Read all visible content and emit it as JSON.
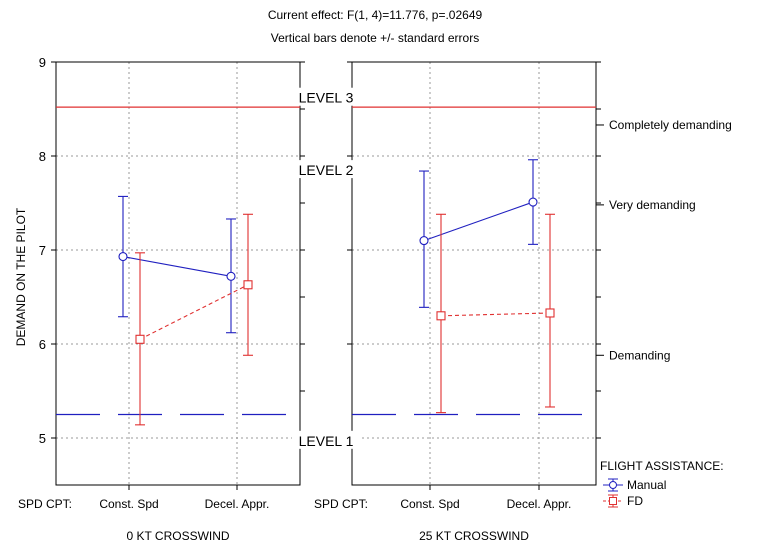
{
  "chart_data": {
    "type": "line",
    "title": "Current effect: F(1, 4)=11.776, p=.02649",
    "subtitle": "Vertical bars denote +/- standard errors",
    "ylabel": "DEMAND ON THE PILOT",
    "ylim": [
      4.5,
      9
    ],
    "yticks": [
      "5",
      "6",
      "7",
      "8",
      "9"
    ],
    "x_axis_prefix": "SPD CPT:",
    "categories": [
      "Const. Spd",
      "Decel. Appr."
    ],
    "panels": [
      {
        "label": "0 KT CROSSWIND",
        "series": [
          {
            "name": "Manual",
            "values": [
              6.93,
              6.72
            ],
            "lower": [
              6.29,
              6.12
            ],
            "upper": [
              7.57,
              7.33
            ]
          },
          {
            "name": "FD",
            "values": [
              6.05,
              6.63
            ],
            "lower": [
              5.14,
              5.88
            ],
            "upper": [
              6.97,
              7.38
            ]
          }
        ]
      },
      {
        "label": "25 KT CROSSWIND",
        "series": [
          {
            "name": "Manual",
            "values": [
              7.1,
              7.51
            ],
            "lower": [
              6.39,
              7.06
            ],
            "upper": [
              7.84,
              7.96
            ]
          },
          {
            "name": "FD",
            "values": [
              6.3,
              6.33
            ],
            "lower": [
              5.27,
              5.33
            ],
            "upper": [
              7.38,
              7.38
            ]
          }
        ]
      }
    ],
    "reference_lines": [
      {
        "label": "LEVEL 3",
        "y": 8.52,
        "color": "#e03030",
        "style": "solid"
      },
      {
        "label": "LEVEL 1",
        "y": 5.25,
        "color": "#2020c0",
        "style": "dashed"
      }
    ],
    "level_labels": [
      {
        "label": "LEVEL 3",
        "y": 8.62
      },
      {
        "label": "LEVEL 2",
        "y": 7.85
      },
      {
        "label": "LEVEL 1",
        "y": 4.97
      }
    ],
    "right_axis": [
      {
        "label": "Completely demanding",
        "y": 8.33
      },
      {
        "label": "Very demanding",
        "y": 7.48
      },
      {
        "label": "Demanding",
        "y": 5.88
      }
    ],
    "legend": {
      "title": "FLIGHT ASSISTANCE:",
      "position": "bottom-right",
      "entries": [
        {
          "name": "Manual",
          "color": "#2020c0",
          "marker": "circle",
          "style": "solid"
        },
        {
          "name": "FD",
          "color": "#e03030",
          "marker": "square",
          "style": "dashed"
        }
      ]
    },
    "grid": true,
    "colors": {
      "Manual": "#2020c0",
      "FD": "#e03030",
      "grid": "#999999"
    }
  }
}
